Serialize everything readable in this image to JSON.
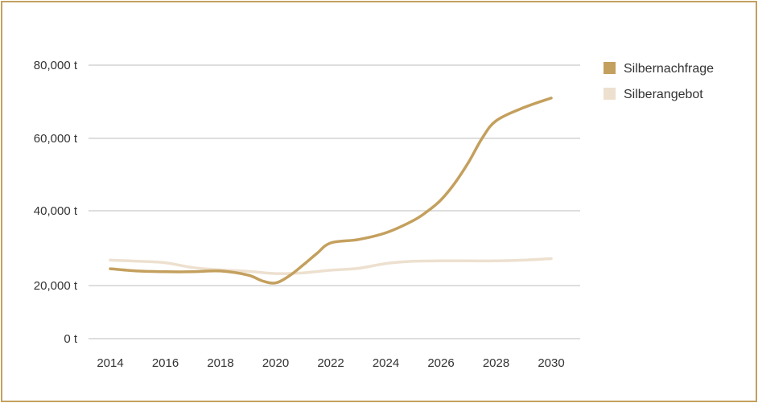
{
  "chart_data": {
    "type": "line",
    "title": "",
    "xlabel": "",
    "ylabel": "",
    "x_ticks": [
      "2014",
      "2016",
      "2018",
      "2020",
      "2022",
      "2024",
      "2026",
      "2028",
      "2030"
    ],
    "y_ticks": [
      {
        "value": 0,
        "label": "0 t"
      },
      {
        "value": 20000,
        "label": "20,000 t"
      },
      {
        "value": 40000,
        "label": "40,000 t"
      },
      {
        "value": 60000,
        "label": "60,000 t"
      },
      {
        "value": 80000,
        "label": "80,000 t"
      }
    ],
    "xlim": [
      2014,
      2030
    ],
    "ylim": [
      0,
      80000
    ],
    "grid": true,
    "legend_position": "right",
    "series": [
      {
        "name": "Silbernachfrage",
        "color": "#c4a05e",
        "x": [
          2014,
          2015,
          2016,
          2017,
          2018,
          2019,
          2019.5,
          2020,
          2020.5,
          2021,
          2021.5,
          2022,
          2023,
          2024,
          2025,
          2025.5,
          2026,
          2026.5,
          2027,
          2027.5,
          2028,
          2029,
          2030
        ],
        "values": [
          24500,
          23900,
          23700,
          23700,
          23900,
          22800,
          21300,
          20700,
          22600,
          25500,
          28600,
          31400,
          32300,
          34100,
          37400,
          39800,
          43000,
          47600,
          53400,
          60100,
          64800,
          68400,
          71000
        ]
      },
      {
        "name": "Silberangebot",
        "color": "#ede0cf",
        "x": [
          2014,
          2015,
          2016,
          2017,
          2018,
          2019,
          2020,
          2021,
          2022,
          2023,
          2024,
          2025,
          2026,
          2027,
          2028,
          2029,
          2030
        ],
        "values": [
          26800,
          26500,
          26100,
          24800,
          24200,
          23800,
          23200,
          23400,
          24100,
          24600,
          25900,
          26500,
          26600,
          26600,
          26600,
          26800,
          27200
        ]
      }
    ]
  }
}
